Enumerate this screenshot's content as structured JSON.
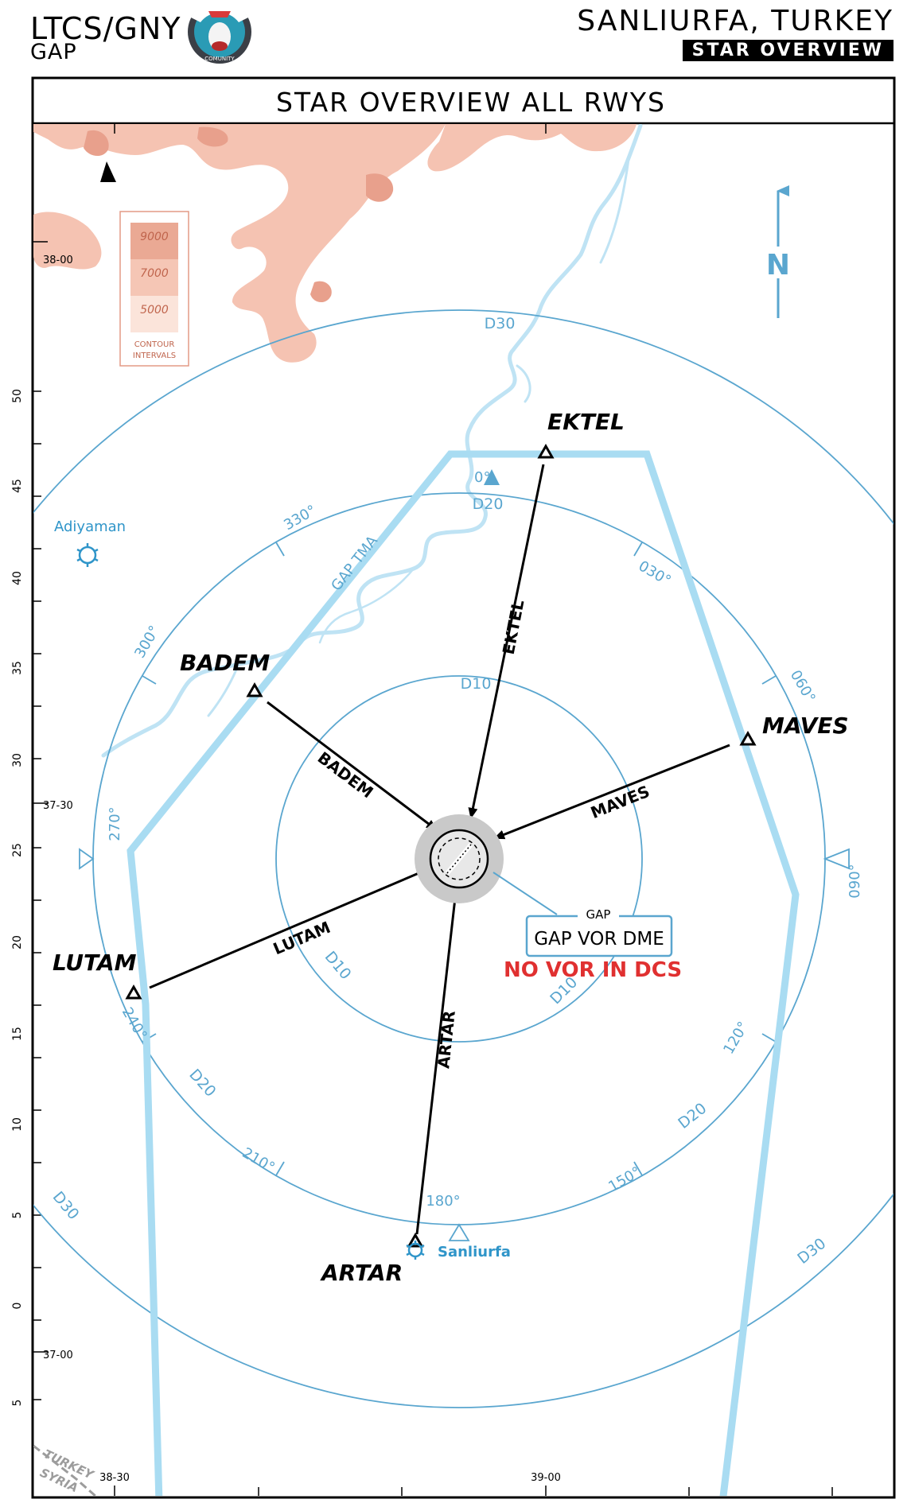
{
  "header": {
    "ident": "LTCS/GNY",
    "name": "GAP",
    "city": "SANLIURFA, TURKEY",
    "tag": "STAR OVERVIEW"
  },
  "chart_title": "STAR OVERVIEW ALL RWYS",
  "logo_text": "COMUNITY",
  "contour_legend": {
    "levels": [
      "9000",
      "7000",
      "5000"
    ],
    "label_line1": "CONTOUR",
    "label_line2": "INTERVALS"
  },
  "north_label": "N",
  "rings": {
    "d10": "D10",
    "d20": "D20",
    "d30": "D30"
  },
  "tma_label": "GAP TMA",
  "navaid": {
    "ident": "GAP",
    "name": "GAP VOR DME",
    "note": "NO VOR IN DCS"
  },
  "fixes": {
    "ektel": "EKTEL",
    "badem": "BADEM",
    "maves": "MAVES",
    "lutam": "LUTAM",
    "artar": "ARTAR"
  },
  "routes": {
    "ektel": "EKTEL",
    "badem": "BADEM",
    "maves": "MAVES",
    "lutam": "LUTAM",
    "artar": "ARTAR"
  },
  "bearings": {
    "b000": "0°",
    "b030": "030°",
    "b060": "060°",
    "b090": "090°",
    "b120": "120°",
    "b150": "150°",
    "b180": "180°",
    "b210": "210°",
    "b240": "240°",
    "b270": "270°",
    "b300": "300°",
    "b330": "330°"
  },
  "towns": {
    "adiyaman": "Adiyaman",
    "sanliurfa": "Sanliurfa"
  },
  "latitudes": {
    "l3800": "38-00",
    "l3730": "37-30",
    "l3700": "37-00"
  },
  "longitudes": {
    "l3830": "38-30",
    "l3900": "39-00"
  },
  "minute_ticks": [
    "50",
    "45",
    "40",
    "35",
    "30",
    "25",
    "20",
    "15",
    "10",
    "5",
    "0",
    "5"
  ],
  "border": {
    "north": "TURKEY",
    "south": "SYRIA"
  },
  "colors": {
    "ink": "#000000",
    "chart_blue": "#5aa6cf",
    "tma_blue": "#a9dcf2",
    "river": "#bfe3f4",
    "terrain": "#f0b8a6",
    "terrain_dark": "#e39a86",
    "warning_red": "#e03030"
  }
}
